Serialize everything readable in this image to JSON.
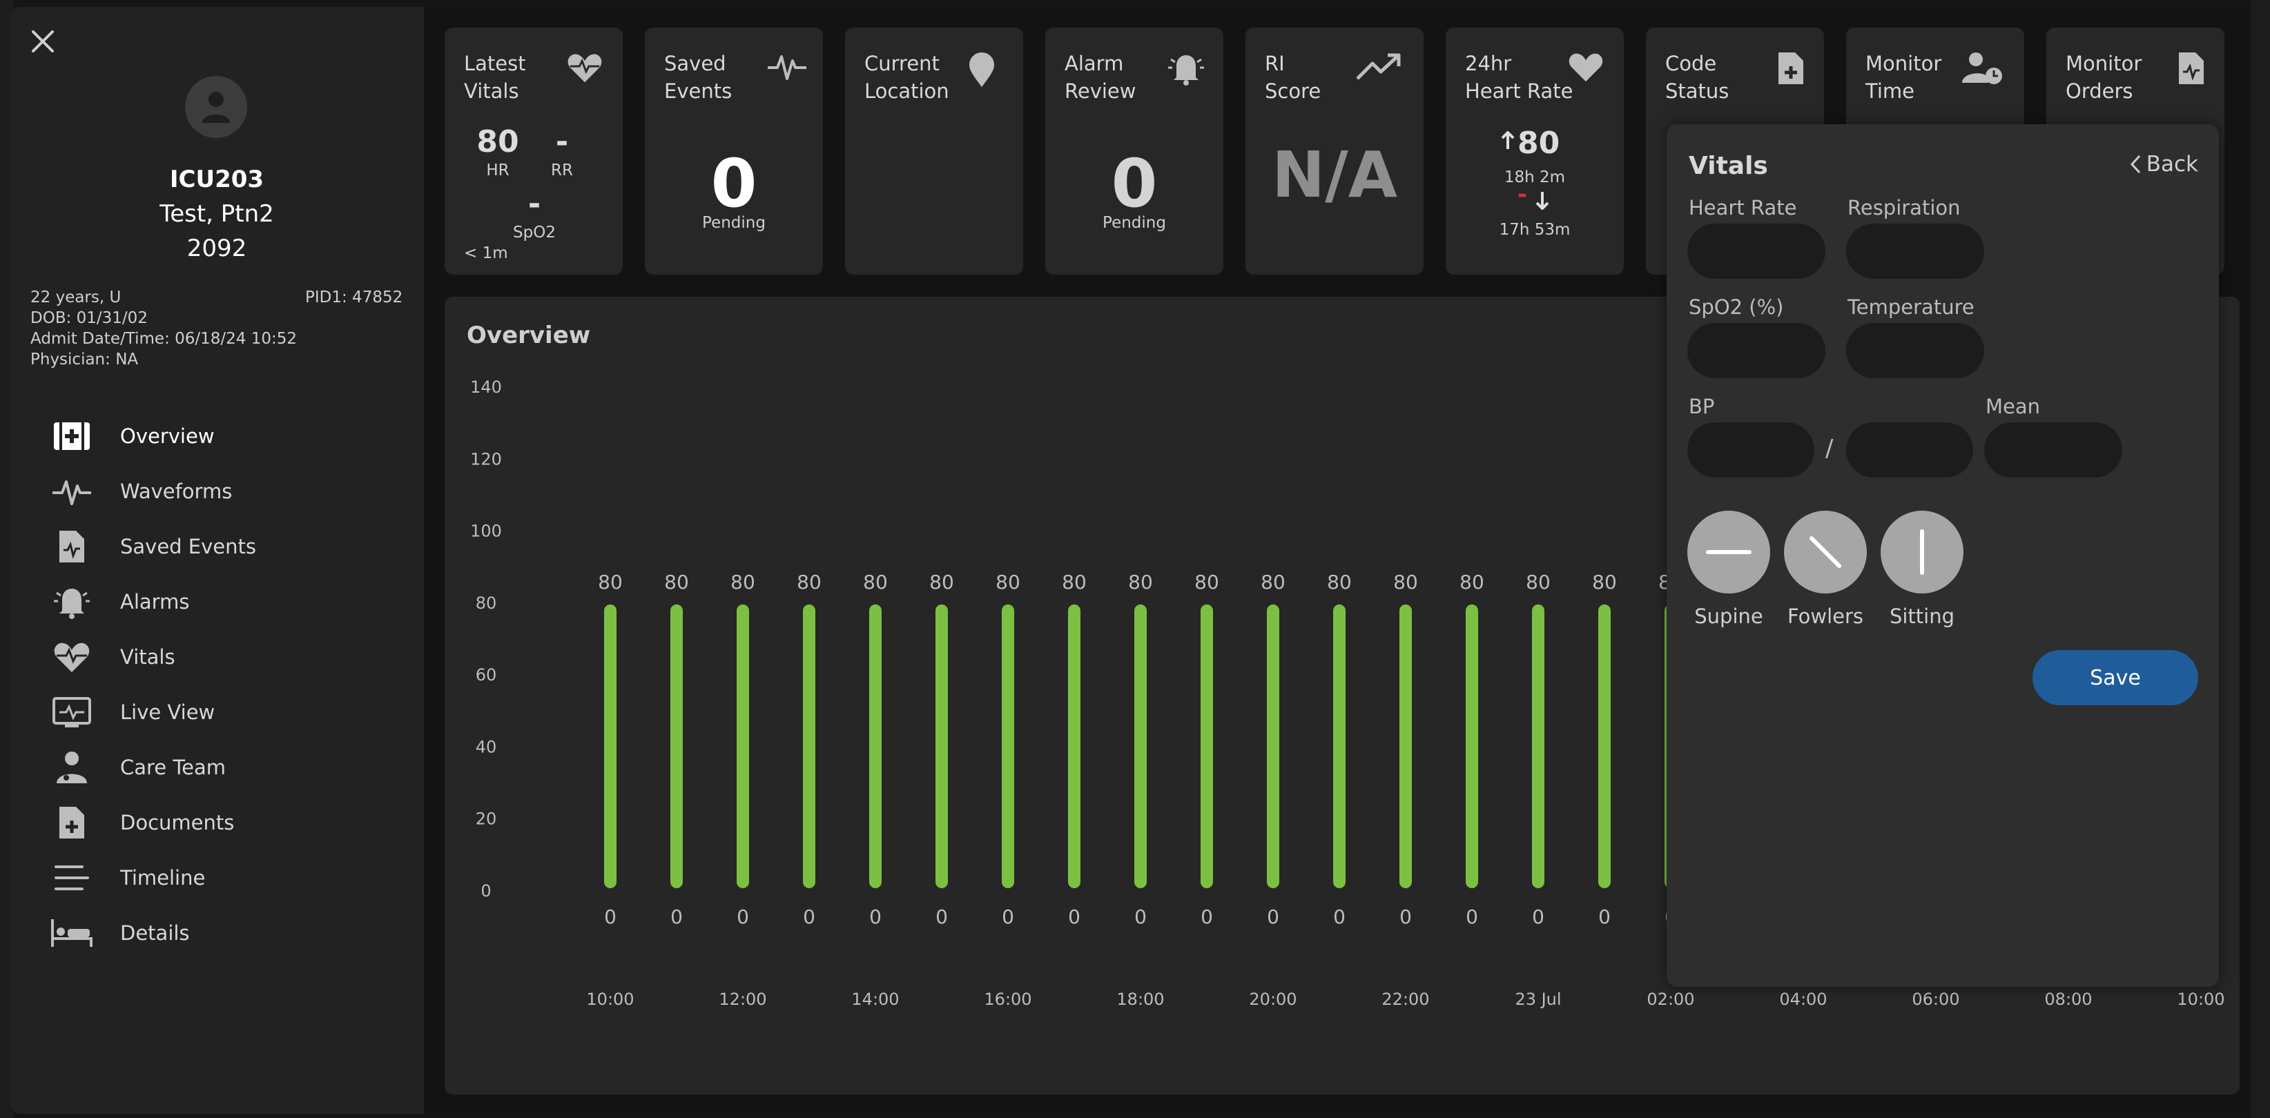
{
  "patient": {
    "bed": "ICU203",
    "name": "Test, Ptn2",
    "number": "2092",
    "age_sex": "22 years, U",
    "pid": "PID1: 47852",
    "dob": "DOB: 01/31/02",
    "admit": "Admit Date/Time: 06/18/24 10:52",
    "physician": "Physician: NA"
  },
  "nav": {
    "items": [
      {
        "label": "Overview",
        "icon": "medical-case-icon"
      },
      {
        "label": "Waveforms",
        "icon": "pulse-icon"
      },
      {
        "label": "Saved Events",
        "icon": "file-pulse-icon"
      },
      {
        "label": "Alarms",
        "icon": "bell-icon"
      },
      {
        "label": "Vitals",
        "icon": "heart-pulse-icon"
      },
      {
        "label": "Live View",
        "icon": "monitor-icon"
      },
      {
        "label": "Care Team",
        "icon": "doctor-icon"
      },
      {
        "label": "Documents",
        "icon": "file-plus-icon"
      },
      {
        "label": "Timeline",
        "icon": "lines-icon"
      },
      {
        "label": "Details",
        "icon": "bed-icon"
      }
    ]
  },
  "cards": {
    "latest_vitals": {
      "title_1": "Latest",
      "title_2": "Vitals",
      "hr": "80",
      "hr_label": "HR",
      "rr": "-",
      "rr_label": "RR",
      "spo2": "-",
      "spo2_label": "SpO2",
      "age": "< 1m"
    },
    "saved_events": {
      "title_1": "Saved",
      "title_2": "Events",
      "count": "0",
      "sub": "Pending"
    },
    "current_location": {
      "title_1": "Current",
      "title_2": "Location"
    },
    "alarm_review": {
      "title_1": "Alarm",
      "title_2": "Review",
      "count": "0",
      "sub": "Pending"
    },
    "ri_score": {
      "title_1": "RI",
      "title_2": "Score",
      "value": "N/A"
    },
    "heart_rate_24": {
      "title_1": "24hr",
      "title_2": "Heart Rate",
      "high": "80",
      "high_time": "18h 2m",
      "low": "-",
      "low_time": "17h 53m"
    },
    "code_status": {
      "title_1": "Code",
      "title_2": "Status"
    },
    "monitor_time": {
      "title_1": "Monitor",
      "title_2": "Time"
    },
    "monitor_orders": {
      "title_1": "Monitor",
      "title_2": "Orders"
    }
  },
  "overview": {
    "title": "Overview"
  },
  "chart_data": {
    "type": "bar",
    "title": "Overview",
    "xlabel": "",
    "ylabel": "",
    "ylim": [
      0,
      140
    ],
    "yticks": [
      0,
      20,
      40,
      60,
      80,
      100,
      120,
      140
    ],
    "x_tick_labels": [
      "10:00",
      "12:00",
      "14:00",
      "16:00",
      "18:00",
      "20:00",
      "22:00",
      "23 Jul",
      "02:00",
      "04:00",
      "06:00",
      "08:00",
      "10:00"
    ],
    "bars": [
      {
        "high": 80,
        "low": 0
      },
      {
        "high": 80,
        "low": 0
      },
      {
        "high": 80,
        "low": 0
      },
      {
        "high": 80,
        "low": 0
      },
      {
        "high": 80,
        "low": 0
      },
      {
        "high": 80,
        "low": 0
      },
      {
        "high": 80,
        "low": 0
      },
      {
        "high": 80,
        "low": 0
      },
      {
        "high": 80,
        "low": 0
      },
      {
        "high": 80,
        "low": 0
      },
      {
        "high": 80,
        "low": 0
      },
      {
        "high": 80,
        "low": 0
      },
      {
        "high": 80,
        "low": 0
      },
      {
        "high": 80,
        "low": 0
      },
      {
        "high": 80,
        "low": 0
      },
      {
        "high": 80,
        "low": 0
      },
      {
        "high": 80,
        "low": 0
      }
    ],
    "bar_color": "#7cc043",
    "grid": false
  },
  "vitals_panel": {
    "title": "Vitals",
    "back_label": "Back",
    "heart_rate_label": "Heart Rate",
    "respiration_label": "Respiration",
    "spo2_label": "SpO2 (%)",
    "temperature_label": "Temperature",
    "bp_label": "BP",
    "bp_separator": "/",
    "mean_label": "Mean",
    "positions": [
      "Supine",
      "Fowlers",
      "Sitting"
    ],
    "save_label": "Save"
  },
  "colors": {
    "accent_save": "#1f5d9a",
    "bar": "#7cc043",
    "low_marker": "#d9302c"
  }
}
